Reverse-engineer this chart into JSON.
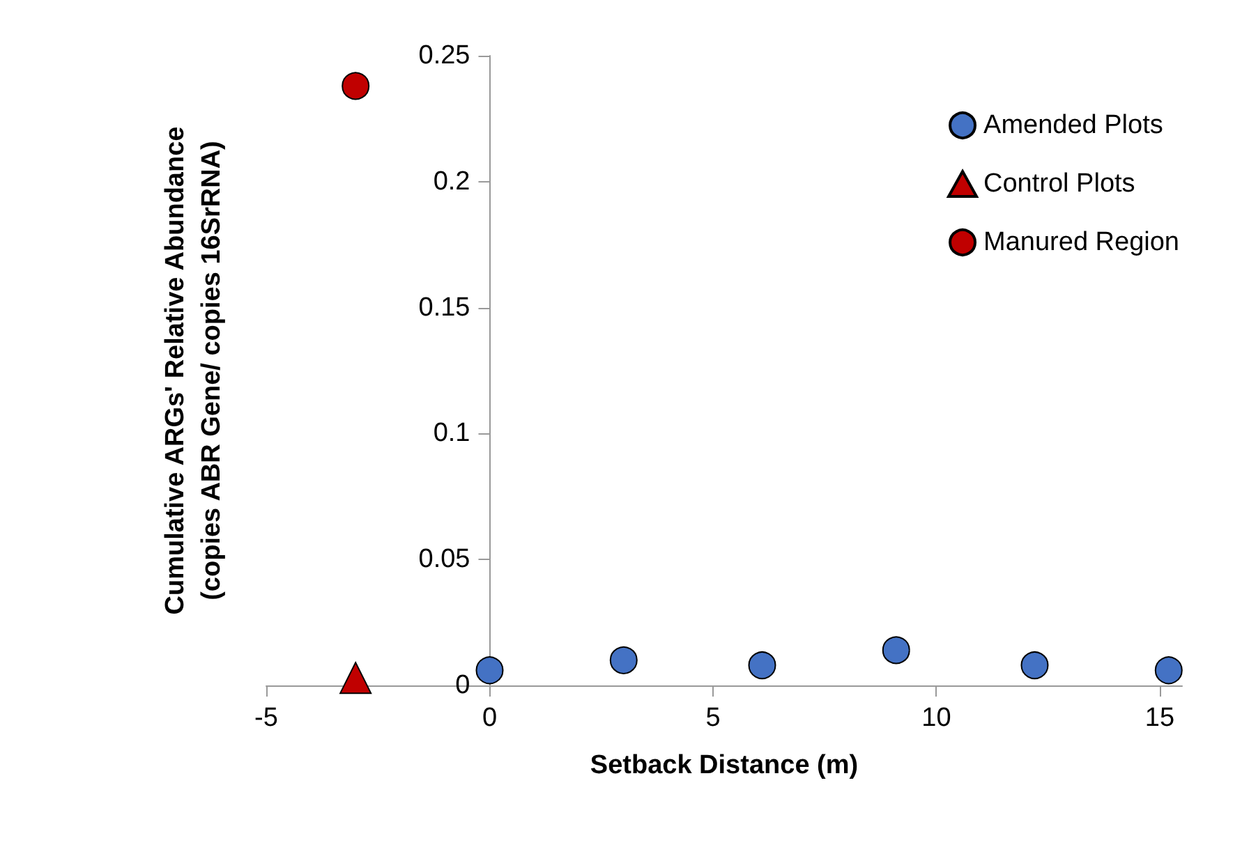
{
  "chart_data": {
    "type": "scatter",
    "xlabel": "Setback Distance (m)",
    "ylabel": "Cumulative ARGs' Relative Abundance\n(copies ABR Gene/ copies 16SrRNA)",
    "series": [
      {
        "name": "Amended Plots",
        "color": "#4472c4",
        "marker": "circle",
        "x": [
          0,
          3.0,
          6.1,
          9.1,
          12.2,
          15.2
        ],
        "values": [
          0.006,
          0.01,
          0.008,
          0.014,
          0.008,
          0.006
        ]
      },
      {
        "name": "Control Plots",
        "color": "#c00000",
        "marker": "triangle",
        "x": [
          -3
        ],
        "values": [
          0.003
        ]
      },
      {
        "name": "Manured Region",
        "color": "#c00000",
        "marker": "circle",
        "x": [
          -3
        ],
        "values": [
          0.238
        ]
      }
    ],
    "xlim": [
      -5,
      15.5
    ],
    "xticks": [
      -5,
      0,
      5,
      10,
      15
    ],
    "ylim": [
      0,
      0.25
    ],
    "yticks": [
      0,
      0.05,
      0.1,
      0.15,
      0.2,
      0.25
    ],
    "grid": false,
    "legend": "top right"
  }
}
